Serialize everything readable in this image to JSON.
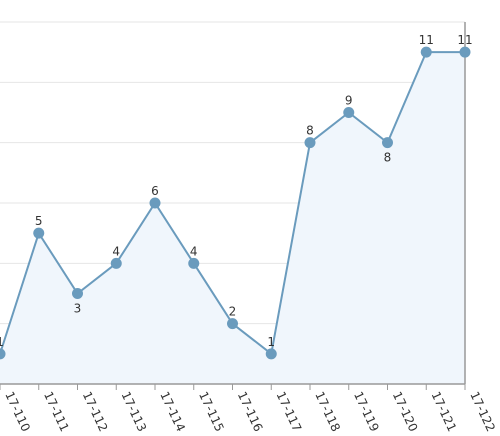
{
  "chart_data": {
    "type": "area",
    "title": "",
    "xlabel": "",
    "ylabel": "",
    "categories": [
      "17-110",
      "17-111",
      "17-112",
      "17-113",
      "17-114",
      "17-115",
      "17-116",
      "17-117",
      "17-118",
      "17-119",
      "17-120",
      "17-121",
      "17-122"
    ],
    "series": [
      {
        "values": [
          1,
          5,
          3,
          4,
          6,
          4,
          2,
          1,
          8,
          9,
          8,
          11,
          11
        ],
        "color": "#6a9bbd",
        "fill": "#f0f6fc"
      }
    ],
    "ylim": [
      0,
      12
    ],
    "y_grid_step": 2,
    "grid": true,
    "legend": "none"
  }
}
